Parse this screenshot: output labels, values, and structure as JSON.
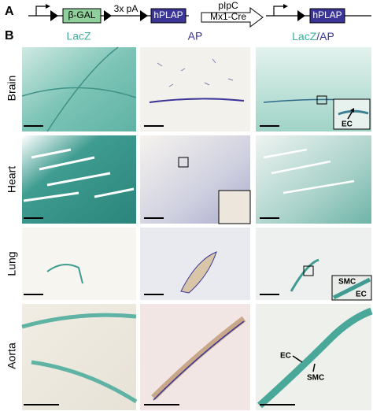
{
  "panel_a": {
    "label": "A",
    "beta_gal": "β-GAL",
    "polya": "3x pA",
    "hplap_1": "hPLAP",
    "pipc": "pIpC",
    "cre": "Mx1-Cre",
    "hplap_2": "hPLAP"
  },
  "panel_b": {
    "label": "B",
    "columns": [
      "LacZ",
      "AP"
    ],
    "merge": [
      "LacZ",
      "/AP"
    ],
    "rows": [
      "Brain",
      "Heart",
      "Lung",
      "Aorta"
    ],
    "annotations": [
      "EC",
      "SMC",
      "EC",
      "EC",
      "SMC"
    ]
  }
}
